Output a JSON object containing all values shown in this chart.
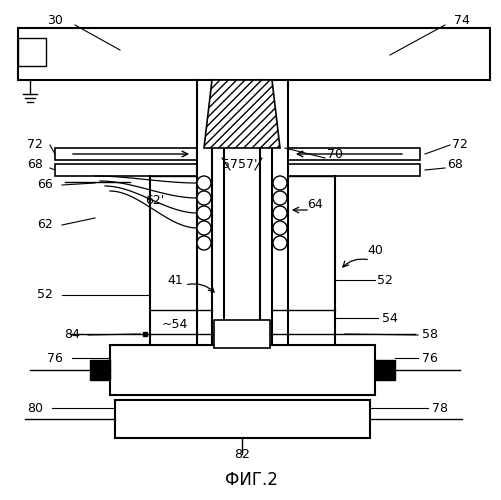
{
  "title": "ФИГ.2",
  "bg_color": "#ffffff",
  "line_color": "#000000",
  "fs": 9
}
